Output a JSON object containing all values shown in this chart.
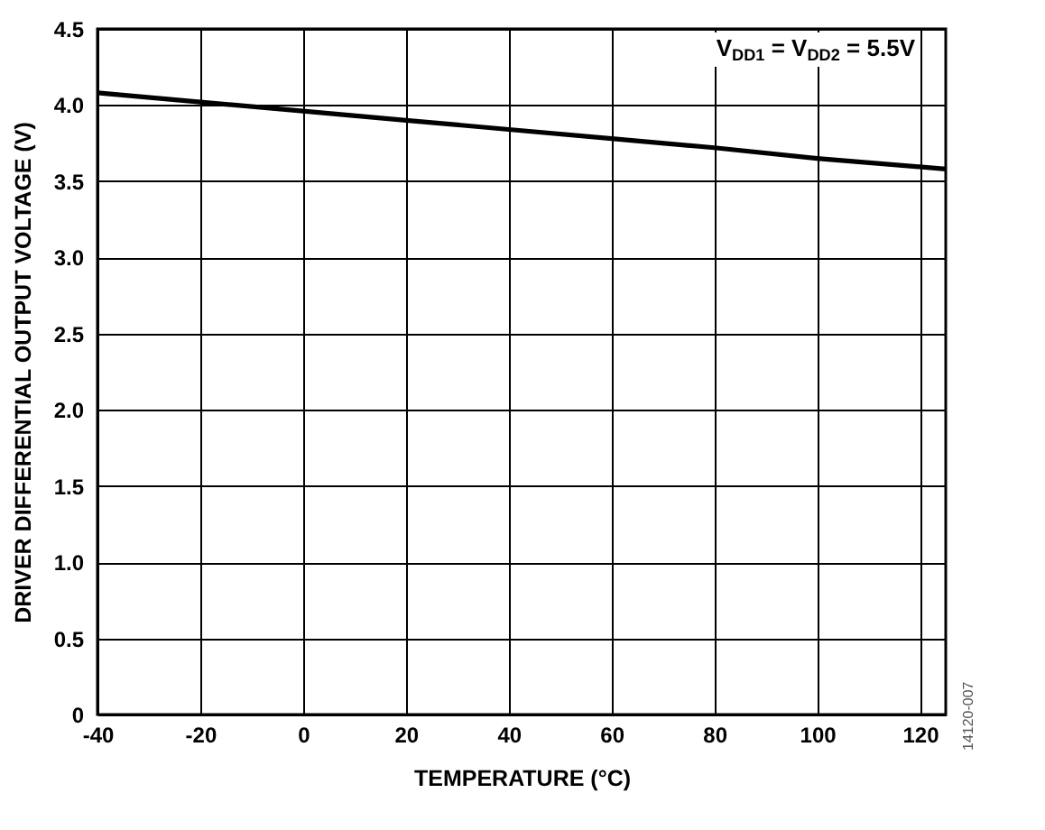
{
  "chart_data": {
    "type": "line",
    "xlabel": "TEMPERATURE (°C)",
    "ylabel": "DRIVER DIFFERENTIAL OUTPUT VOLTAGE (V)",
    "x": [
      -40,
      -20,
      0,
      20,
      40,
      60,
      80,
      100,
      125
    ],
    "series": [
      {
        "color": "#000000",
        "values": [
          4.08,
          4.02,
          3.96,
          3.9,
          3.84,
          3.78,
          3.72,
          3.65,
          3.58
        ]
      }
    ],
    "xlim": [
      -40,
      125
    ],
    "xticks": [
      -40,
      -20,
      0,
      20,
      40,
      60,
      80,
      100,
      120
    ],
    "ylim": [
      0,
      4.5
    ],
    "yticks": [
      0,
      0.5,
      {
        "value": 1,
        "label": "1.0"
      },
      1.5,
      {
        "value": 2,
        "label": "2.0"
      },
      2.5,
      {
        "value": 3,
        "label": "3.0"
      },
      3.5,
      {
        "value": 4,
        "label": "4.0"
      },
      4.5
    ],
    "grid": true,
    "marker": "none",
    "line_style": "solid",
    "annotations": [
      "V$_{DD1}$ = V$_{DD2}$ = 5.5V",
      "14120-007"
    ]
  }
}
